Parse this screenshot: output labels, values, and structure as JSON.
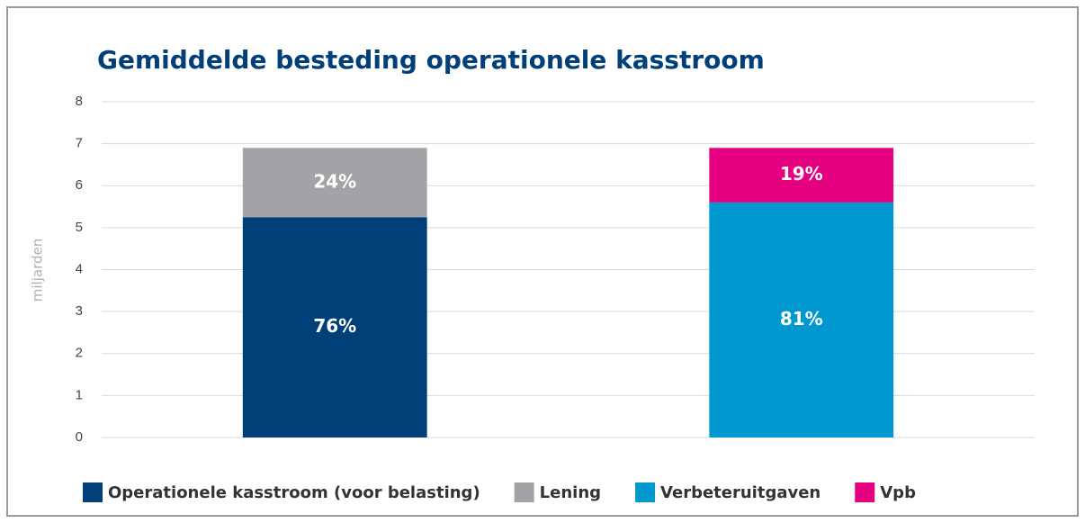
{
  "chart_data": {
    "type": "bar",
    "stacked": true,
    "title": "Gemiddelde besteding operationele kasstroom",
    "y_label": "miljarden",
    "categories": [
      null,
      null
    ],
    "series": [
      {
        "name": "Operationele kasstroom (voor belasting)",
        "color": "#003f78",
        "values": [
          5.25,
          null
        ],
        "value_labels": [
          "76%",
          null
        ]
      },
      {
        "name": "Lening",
        "color": "#a1a3a6",
        "values": [
          1.65,
          null
        ],
        "value_labels": [
          "24%",
          null
        ]
      },
      {
        "name": "Verbeteruitgaven",
        "color": "#0098cf",
        "values": [
          null,
          5.6
        ],
        "value_labels": [
          null,
          "81%"
        ]
      },
      {
        "name": "Vpb",
        "color": "#e4007f",
        "values": [
          null,
          1.3
        ],
        "value_labels": [
          null,
          "19%"
        ]
      }
    ],
    "ylim": [
      0,
      8
    ],
    "yticks": [
      0,
      1,
      2,
      3,
      4,
      5,
      6,
      7,
      8
    ],
    "grid": true,
    "legend": "bottom"
  }
}
